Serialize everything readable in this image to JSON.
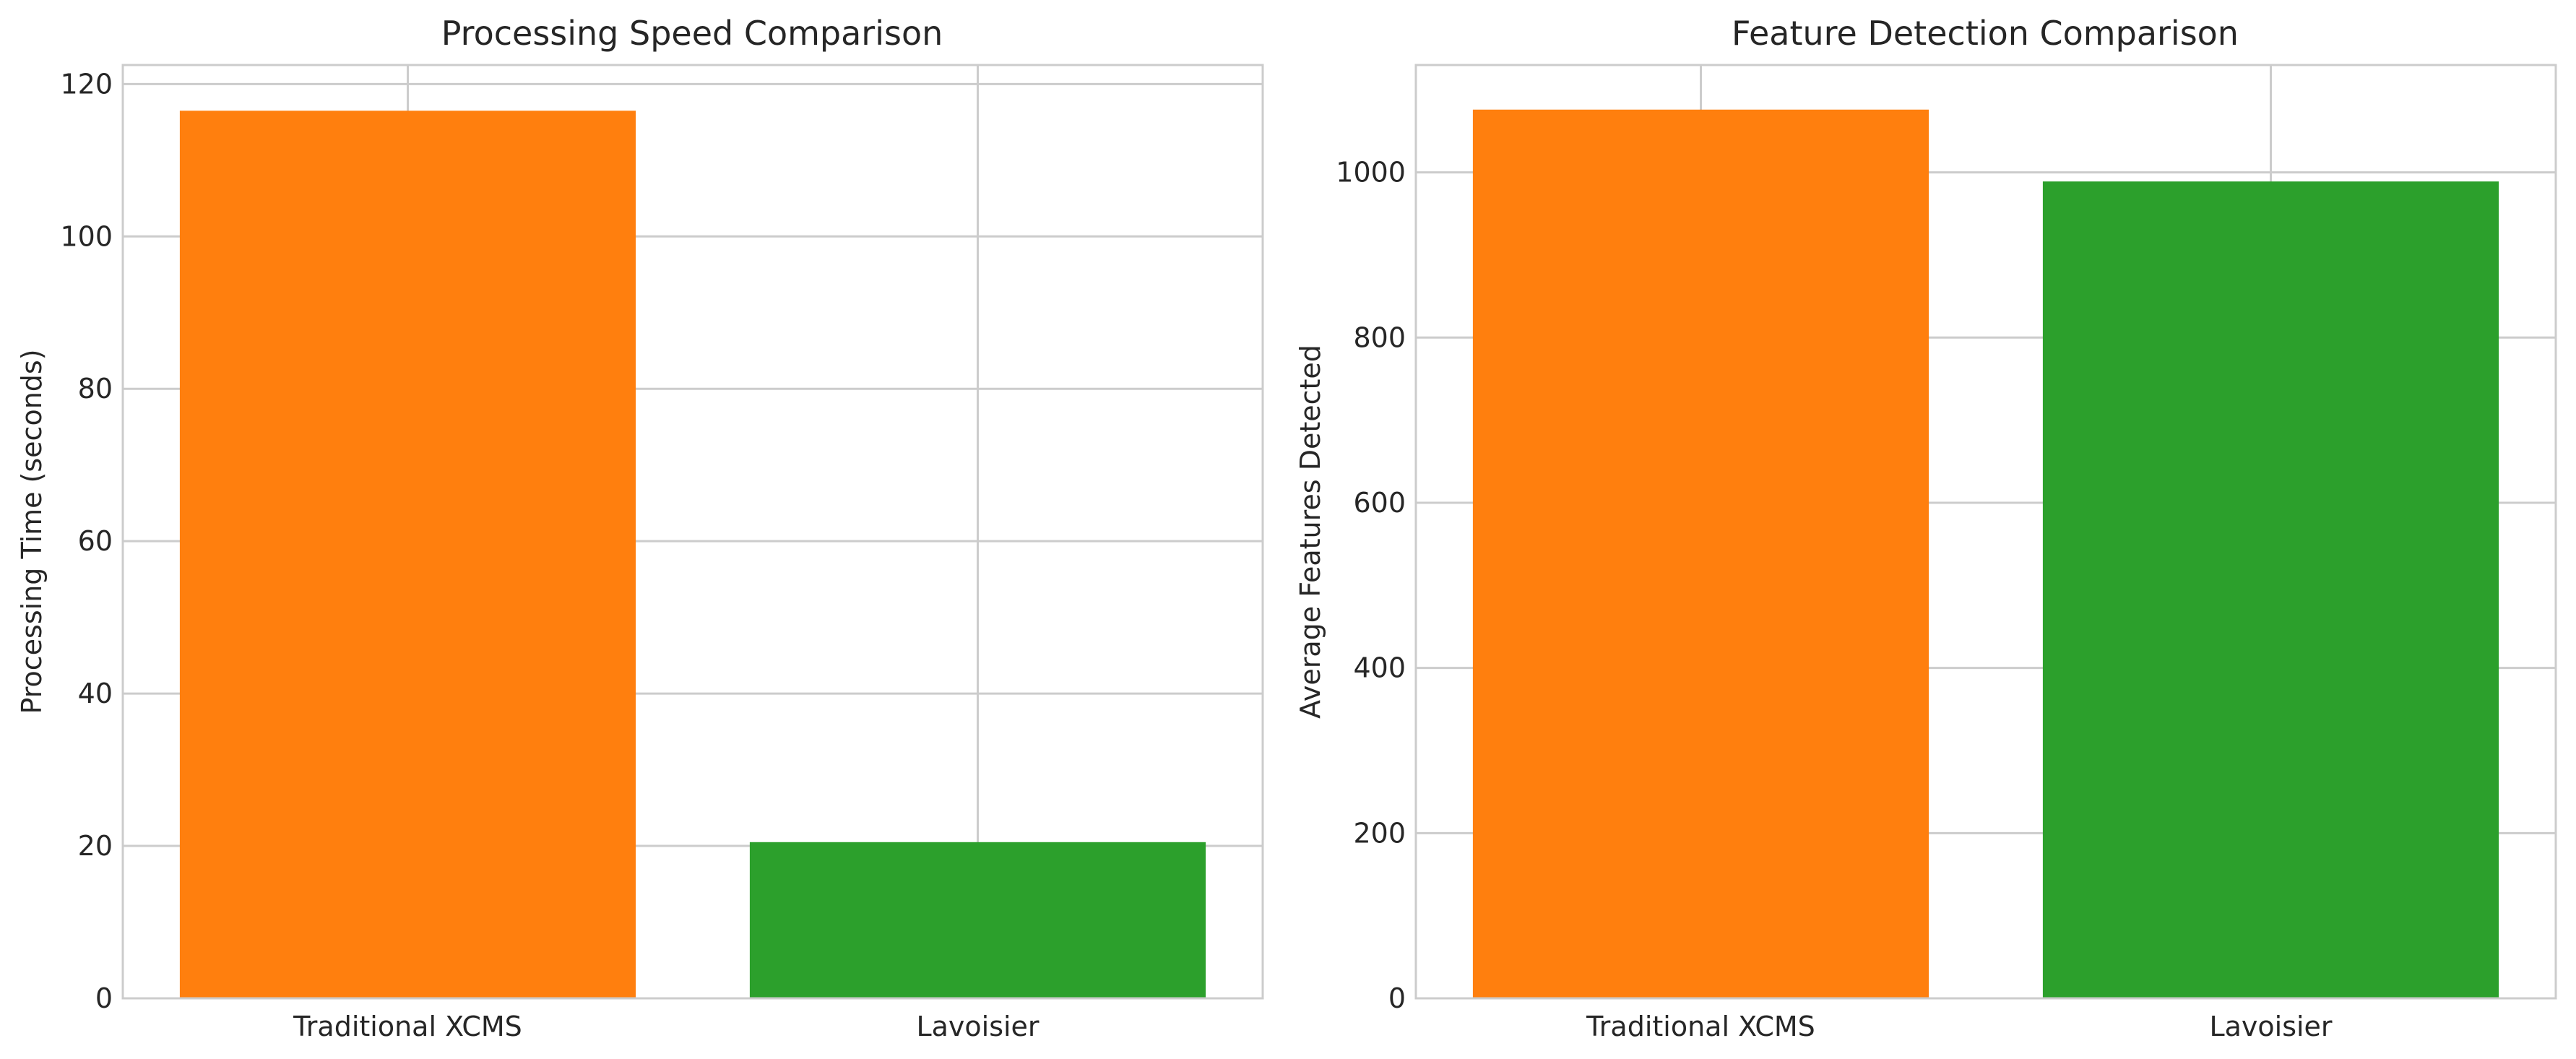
{
  "colors": {
    "traditional": "#ff7f0e",
    "lavoisier": "#2ca02c",
    "grid": "#cccccc",
    "text": "#262626"
  },
  "chart_data": [
    {
      "type": "bar",
      "title": "Processing Speed Comparison",
      "xlabel": "",
      "ylabel": "Processing Time (seconds)",
      "categories": [
        "Traditional XCMS",
        "Lavoisier"
      ],
      "values": [
        116.5,
        20.5
      ],
      "bar_colors": [
        "#ff7f0e",
        "#2ca02c"
      ],
      "ylim": [
        0,
        122.5
      ],
      "yticks": [
        0,
        20,
        40,
        60,
        80,
        100,
        120
      ],
      "grid": true,
      "legend": "none"
    },
    {
      "type": "bar",
      "title": "Feature Detection Comparison",
      "xlabel": "",
      "ylabel": "Average Features Detected",
      "categories": [
        "Traditional XCMS",
        "Lavoisier"
      ],
      "values": [
        1076,
        989
      ],
      "bar_colors": [
        "#ff7f0e",
        "#2ca02c"
      ],
      "ylim": [
        0,
        1130
      ],
      "yticks": [
        0,
        200,
        400,
        600,
        800,
        1000
      ],
      "grid": true,
      "legend": "none"
    }
  ]
}
